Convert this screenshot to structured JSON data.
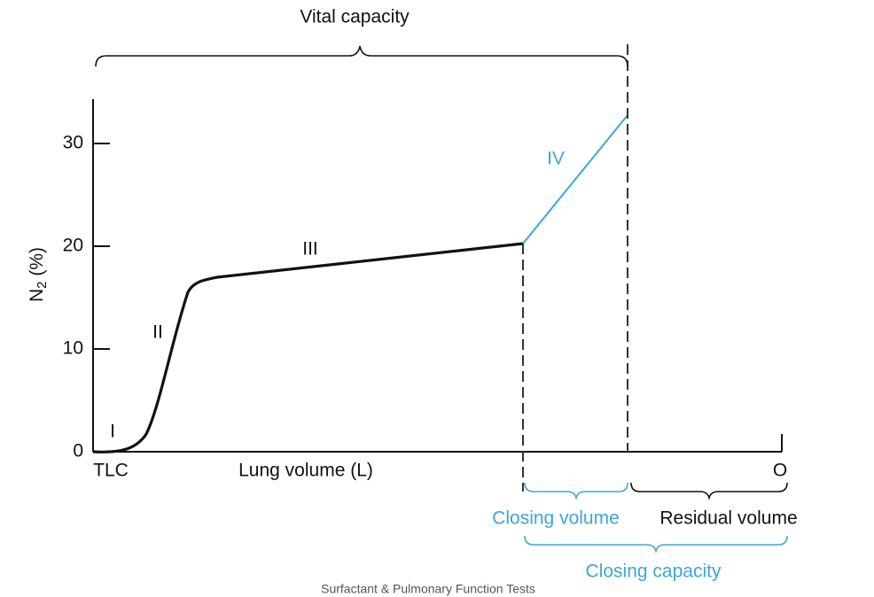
{
  "title": "Vital capacity",
  "y_axis": {
    "label": "N",
    "label_subscript": "2",
    "label_unit": "(%)",
    "ticks": [
      0,
      10,
      20,
      30
    ]
  },
  "x_axis": {
    "start": "TLC",
    "label": "Lung volume (L)",
    "end": "O"
  },
  "phases": [
    "I",
    "II",
    "III",
    "IV"
  ],
  "volumes": {
    "closing_volume": "Closing volume",
    "residual_volume": "Residual volume",
    "closing_capacity": "Closing capacity"
  },
  "footer": "Surfactant & Pulmonary Function Tests"
}
